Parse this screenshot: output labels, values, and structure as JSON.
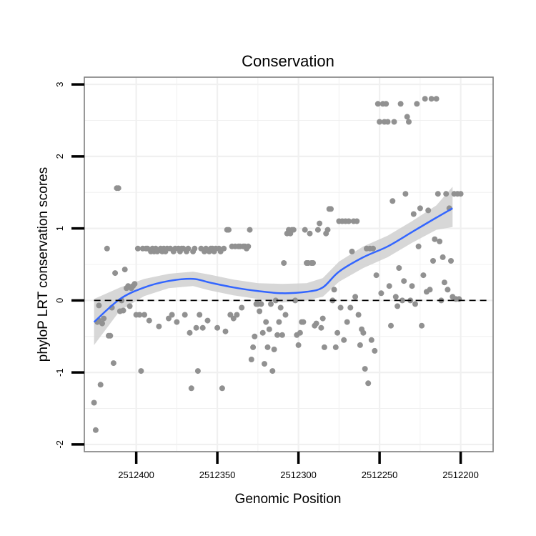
{
  "chart_data": {
    "type": "scatter",
    "title": "Conservation",
    "xlabel": "Genomic Position",
    "ylabel": "phyloP LRT conservation scores",
    "x_reversed": true,
    "xlim": [
      2512432,
      2512180
    ],
    "ylim": [
      -2.1,
      3.1
    ],
    "x_ticks": [
      2512400,
      2512350,
      2512300,
      2512250,
      2512200
    ],
    "y_ticks": [
      -2,
      -1,
      0,
      1,
      2,
      3
    ],
    "reference_line": {
      "y": 0,
      "style": "dashed"
    },
    "grid": true,
    "colors": {
      "points": "#919191",
      "smooth_line": "#3366FF",
      "band": "#d0d0d0",
      "grid": "#f0f0f0",
      "frame": "#7f7f7f"
    },
    "points": [
      [
        2512426,
        -1.42
      ],
      [
        2512425,
        -1.8
      ],
      [
        2512424,
        -0.3
      ],
      [
        2512423,
        -0.07
      ],
      [
        2512423,
        -0.28
      ],
      [
        2512422,
        -1.17
      ],
      [
        2512421,
        -0.32
      ],
      [
        2512420,
        -0.25
      ],
      [
        2512418,
        0.72
      ],
      [
        2512417,
        -0.49
      ],
      [
        2512416,
        -0.49
      ],
      [
        2512415,
        -0.1
      ],
      [
        2512414,
        -0.87
      ],
      [
        2512413,
        0.38
      ],
      [
        2512412,
        1.56
      ],
      [
        2512411,
        1.56
      ],
      [
        2512410,
        -0.15
      ],
      [
        2512409,
        0.0
      ],
      [
        2512408,
        -0.14
      ],
      [
        2512407,
        0.43
      ],
      [
        2512406,
        0.17
      ],
      [
        2512405,
        0.2
      ],
      [
        2512404,
        -0.08
      ],
      [
        2512403,
        0.17
      ],
      [
        2512402,
        0.2
      ],
      [
        2512401,
        0.23
      ],
      [
        2512400,
        -0.2
      ],
      [
        2512399,
        0.72
      ],
      [
        2512398,
        -0.2
      ],
      [
        2512397,
        -0.98
      ],
      [
        2512396,
        0.72
      ],
      [
        2512395,
        -0.2
      ],
      [
        2512394,
        0.72
      ],
      [
        2512393,
        0.72
      ],
      [
        2512392,
        -0.28
      ],
      [
        2512391,
        0.68
      ],
      [
        2512390,
        0.72
      ],
      [
        2512389,
        0.68
      ],
      [
        2512388,
        0.72
      ],
      [
        2512387,
        0.68
      ],
      [
        2512386,
        -0.36
      ],
      [
        2512385,
        0.72
      ],
      [
        2512384,
        0.68
      ],
      [
        2512383,
        0.72
      ],
      [
        2512382,
        0.68
      ],
      [
        2512381,
        0.72
      ],
      [
        2512380,
        -0.25
      ],
      [
        2512379,
        0.72
      ],
      [
        2512378,
        -0.2
      ],
      [
        2512377,
        0.68
      ],
      [
        2512376,
        0.72
      ],
      [
        2512375,
        -0.3
      ],
      [
        2512374,
        0.72
      ],
      [
        2512373,
        0.68
      ],
      [
        2512372,
        0.72
      ],
      [
        2512371,
        0.72
      ],
      [
        2512370,
        -0.2
      ],
      [
        2512369,
        0.68
      ],
      [
        2512368,
        0.72
      ],
      [
        2512367,
        -0.45
      ],
      [
        2512366,
        -1.22
      ],
      [
        2512365,
        0.68
      ],
      [
        2512364,
        0.72
      ],
      [
        2512363,
        -0.38
      ],
      [
        2512362,
        -0.98
      ],
      [
        2512361,
        -0.2
      ],
      [
        2512360,
        0.72
      ],
      [
        2512359,
        -0.38
      ],
      [
        2512358,
        0.68
      ],
      [
        2512357,
        0.72
      ],
      [
        2512356,
        -0.28
      ],
      [
        2512355,
        0.68
      ],
      [
        2512354,
        0.72
      ],
      [
        2512353,
        0.72
      ],
      [
        2512352,
        0.68
      ],
      [
        2512351,
        0.72
      ],
      [
        2512350,
        -0.38
      ],
      [
        2512349,
        0.72
      ],
      [
        2512348,
        0.68
      ],
      [
        2512347,
        -1.22
      ],
      [
        2512346,
        0.72
      ],
      [
        2512345,
        -0.43
      ],
      [
        2512344,
        0.98
      ],
      [
        2512343,
        0.98
      ],
      [
        2512342,
        -0.2
      ],
      [
        2512341,
        0.75
      ],
      [
        2512340,
        -0.25
      ],
      [
        2512339,
        0.75
      ],
      [
        2512338,
        -0.2
      ],
      [
        2512337,
        0.75
      ],
      [
        2512336,
        0.75
      ],
      [
        2512335,
        -0.1
      ],
      [
        2512334,
        0.75
      ],
      [
        2512333,
        0.75
      ],
      [
        2512332,
        0.72
      ],
      [
        2512331,
        0.75
      ],
      [
        2512330,
        0.98
      ],
      [
        2512329,
        -0.82
      ],
      [
        2512328,
        -0.65
      ],
      [
        2512327,
        -0.5
      ],
      [
        2512326,
        -0.05
      ],
      [
        2512325,
        -0.05
      ],
      [
        2512324,
        -0.15
      ],
      [
        2512323,
        -0.05
      ],
      [
        2512322,
        -0.45
      ],
      [
        2512321,
        -0.88
      ],
      [
        2512320,
        -0.3
      ],
      [
        2512319,
        -0.65
      ],
      [
        2512318,
        -0.4
      ],
      [
        2512317,
        -0.05
      ],
      [
        2512316,
        -0.98
      ],
      [
        2512315,
        -0.68
      ],
      [
        2512314,
        0.0
      ],
      [
        2512313,
        -0.48
      ],
      [
        2512312,
        -0.3
      ],
      [
        2512311,
        -0.1
      ],
      [
        2512310,
        -0.48
      ],
      [
        2512309,
        0.52
      ],
      [
        2512308,
        -0.2
      ],
      [
        2512307,
        0.93
      ],
      [
        2512306,
        0.98
      ],
      [
        2512305,
        0.93
      ],
      [
        2512304,
        0.98
      ],
      [
        2512303,
        0.98
      ],
      [
        2512302,
        0.0
      ],
      [
        2512301,
        -0.48
      ],
      [
        2512300,
        -0.62
      ],
      [
        2512299,
        -0.45
      ],
      [
        2512298,
        -0.3
      ],
      [
        2512297,
        -0.3
      ],
      [
        2512296,
        0.98
      ],
      [
        2512295,
        0.52
      ],
      [
        2512294,
        0.52
      ],
      [
        2512293,
        0.93
      ],
      [
        2512292,
        0.52
      ],
      [
        2512291,
        0.52
      ],
      [
        2512290,
        -0.35
      ],
      [
        2512289,
        -0.32
      ],
      [
        2512288,
        0.98
      ],
      [
        2512287,
        1.07
      ],
      [
        2512286,
        -0.38
      ],
      [
        2512285,
        -0.25
      ],
      [
        2512284,
        -0.65
      ],
      [
        2512283,
        0.93
      ],
      [
        2512282,
        0.98
      ],
      [
        2512281,
        1.27
      ],
      [
        2512280,
        1.27
      ],
      [
        2512279,
        0.0
      ],
      [
        2512278,
        0.15
      ],
      [
        2512277,
        -0.65
      ],
      [
        2512276,
        -0.45
      ],
      [
        2512275,
        1.1
      ],
      [
        2512274,
        -0.1
      ],
      [
        2512273,
        1.1
      ],
      [
        2512272,
        -0.55
      ],
      [
        2512271,
        1.1
      ],
      [
        2512270,
        -0.3
      ],
      [
        2512269,
        1.1
      ],
      [
        2512268,
        -0.1
      ],
      [
        2512267,
        0.68
      ],
      [
        2512266,
        1.1
      ],
      [
        2512265,
        0.05
      ],
      [
        2512264,
        1.1
      ],
      [
        2512263,
        -0.2
      ],
      [
        2512262,
        -0.62
      ],
      [
        2512261,
        -0.4
      ],
      [
        2512260,
        -0.45
      ],
      [
        2512259,
        -0.95
      ],
      [
        2512258,
        0.72
      ],
      [
        2512257,
        -1.15
      ],
      [
        2512256,
        0.72
      ],
      [
        2512255,
        -0.55
      ],
      [
        2512254,
        0.72
      ],
      [
        2512253,
        -0.7
      ],
      [
        2512252,
        0.35
      ],
      [
        2512251,
        2.73
      ],
      [
        2512250,
        2.48
      ],
      [
        2512249,
        0.1
      ],
      [
        2512248,
        2.73
      ],
      [
        2512247,
        2.48
      ],
      [
        2512246,
        2.73
      ],
      [
        2512245,
        2.48
      ],
      [
        2512244,
        0.2
      ],
      [
        2512243,
        -0.35
      ],
      [
        2512242,
        1.38
      ],
      [
        2512241,
        2.48
      ],
      [
        2512240,
        0.05
      ],
      [
        2512239,
        -0.08
      ],
      [
        2512238,
        0.45
      ],
      [
        2512237,
        2.73
      ],
      [
        2512236,
        0.0
      ],
      [
        2512235,
        0.27
      ],
      [
        2512234,
        1.48
      ],
      [
        2512233,
        2.55
      ],
      [
        2512232,
        2.48
      ],
      [
        2512231,
        0.0
      ],
      [
        2512230,
        0.2
      ],
      [
        2512229,
        1.2
      ],
      [
        2512228,
        -0.05
      ],
      [
        2512227,
        2.73
      ],
      [
        2512226,
        0.75
      ],
      [
        2512225,
        1.28
      ],
      [
        2512224,
        -0.35
      ],
      [
        2512223,
        0.35
      ],
      [
        2512222,
        2.8
      ],
      [
        2512221,
        0.12
      ],
      [
        2512220,
        1.25
      ],
      [
        2512219,
        0.15
      ],
      [
        2512218,
        2.8
      ],
      [
        2512217,
        0.55
      ],
      [
        2512216,
        0.85
      ],
      [
        2512215,
        2.8
      ],
      [
        2512214,
        1.48
      ],
      [
        2512213,
        0.82
      ],
      [
        2512212,
        0.0
      ],
      [
        2512211,
        0.6
      ],
      [
        2512210,
        0.25
      ],
      [
        2512209,
        1.48
      ],
      [
        2512208,
        0.15
      ],
      [
        2512207,
        1.28
      ],
      [
        2512206,
        0.55
      ],
      [
        2512205,
        0.05
      ],
      [
        2512204,
        1.48
      ],
      [
        2512203,
        0.02
      ],
      [
        2512202,
        1.48
      ],
      [
        2512201,
        0.02
      ],
      [
        2512200,
        1.48
      ]
    ],
    "smooth": {
      "x": [
        2512426,
        2512410,
        2512395,
        2512380,
        2512365,
        2512355,
        2512340,
        2512325,
        2512310,
        2512295,
        2512285,
        2512275,
        2512260,
        2512245,
        2512230,
        2512215,
        2512205
      ],
      "fit": [
        -0.3,
        0.02,
        0.18,
        0.27,
        0.3,
        0.25,
        0.18,
        0.13,
        0.1,
        0.12,
        0.18,
        0.4,
        0.6,
        0.75,
        0.95,
        1.15,
        1.28
      ],
      "lower": [
        -0.62,
        -0.14,
        0.06,
        0.17,
        0.2,
        0.14,
        0.07,
        0.02,
        -0.03,
        0.0,
        0.05,
        0.26,
        0.45,
        0.6,
        0.8,
        0.98,
        1.02
      ],
      "upper": [
        0.02,
        0.18,
        0.3,
        0.37,
        0.4,
        0.36,
        0.29,
        0.24,
        0.23,
        0.24,
        0.31,
        0.54,
        0.75,
        0.9,
        1.1,
        1.32,
        1.58
      ]
    }
  }
}
